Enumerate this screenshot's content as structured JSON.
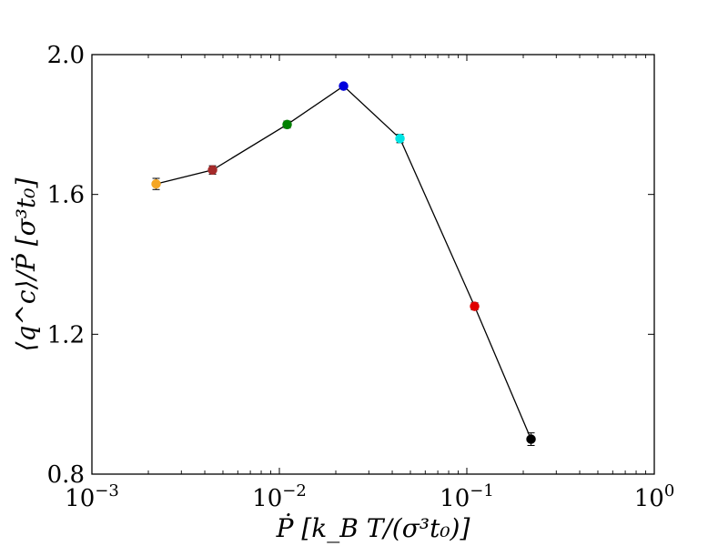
{
  "chart_data": {
    "type": "scatter",
    "title": "",
    "xlabel": "Ṗ [k_B T/(σ³t₀)]",
    "ylabel": "⟨q^c⟩/Ṗ [σ³t₀]",
    "xscale": "log",
    "xlim": [
      0.001,
      1
    ],
    "ylim": [
      0.8,
      2.0
    ],
    "x_ticks": [
      {
        "value": 0.001,
        "base": "10",
        "exp": "−3"
      },
      {
        "value": 0.01,
        "base": "10",
        "exp": "−2"
      },
      {
        "value": 0.1,
        "base": "10",
        "exp": "−1"
      },
      {
        "value": 1,
        "base": "10",
        "exp": "0"
      }
    ],
    "y_ticks": [
      {
        "value": 0.8,
        "label": "0.8"
      },
      {
        "value": 1.2,
        "label": "1.2"
      },
      {
        "value": 1.6,
        "label": "1.6"
      },
      {
        "value": 2.0,
        "label": "2.0"
      }
    ],
    "grid": false,
    "line_color": "#000000",
    "points": [
      {
        "x": 0.0022,
        "y": 1.63,
        "err": 0.016,
        "color": "#f5a623"
      },
      {
        "x": 0.0044,
        "y": 1.67,
        "err": 0.012,
        "color": "#a52a2a"
      },
      {
        "x": 0.011,
        "y": 1.8,
        "err": 0.01,
        "color": "#008000"
      },
      {
        "x": 0.022,
        "y": 1.91,
        "err": 0.008,
        "color": "#0000dd"
      },
      {
        "x": 0.044,
        "y": 1.76,
        "err": 0.012,
        "color": "#00e5e5"
      },
      {
        "x": 0.11,
        "y": 1.28,
        "err": 0.01,
        "color": "#e00000"
      },
      {
        "x": 0.22,
        "y": 0.9,
        "err": 0.018,
        "color": "#000000"
      }
    ]
  }
}
